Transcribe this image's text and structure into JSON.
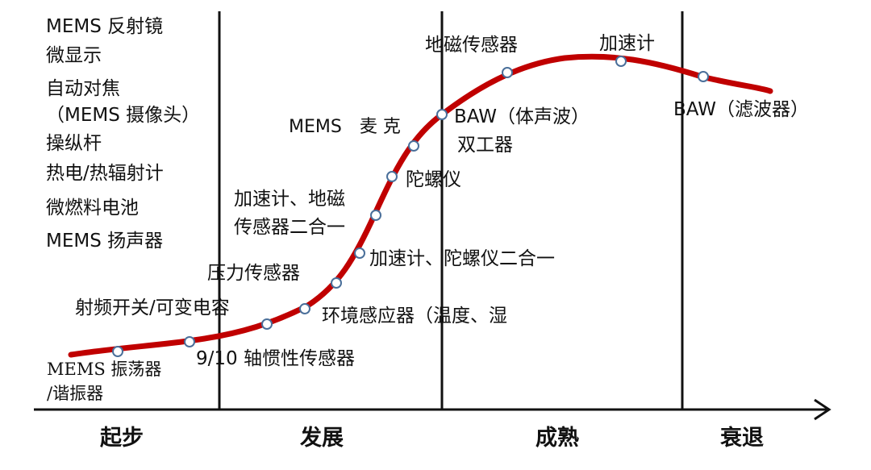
{
  "stages": [
    "起步",
    "发展",
    "成熟",
    "衰退"
  ],
  "left_list": [
    "MEMS 反射镜",
    "微显示",
    "自动对焦",
    "（MEMS 摄像头）",
    "操纵杆",
    "热电/热辐射计",
    "微燃料电池",
    "MEMS 扬声器"
  ],
  "curve_labels": {
    "oscillator_line1": "MEMS 振荡器",
    "oscillator_line2": "/谐振器",
    "inertial": "9/10 轴惯性传感器",
    "rf_switch": "射频开关/可变电容",
    "pressure": "压力传感器",
    "env_sensor": "环境感应器（温度、湿",
    "accel_gyro": "加速计、陀螺仪二合一",
    "accel_mag_line1": "加速计、地磁",
    "accel_mag_line2": "传感器二合一",
    "gyro": "陀螺仪",
    "microphone": "MEMS　麦 克",
    "baw_line1": "BAW（体声波）",
    "baw_line2": "双工器",
    "magnetometer": "地磁传感器",
    "accelerometer": "加速计",
    "baw_filter": "BAW（滤波器）"
  },
  "colors": {
    "curve": "#c00000",
    "axis": "#111111",
    "marker_fill": "#ffffff",
    "marker_stroke": "#4a6f9a"
  }
}
